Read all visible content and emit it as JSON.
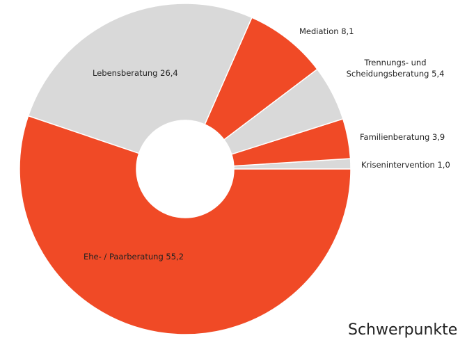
{
  "chart_data": {
    "type": "donut",
    "title": "Schwerpunkte",
    "categories": [
      "Krisenintervention",
      "Familienberatung",
      "Trennungs- und Scheidungsberatung",
      "Mediation",
      "Lebensberatung",
      "Ehe- / Paarberatung"
    ],
    "values": [
      1.0,
      3.9,
      5.4,
      8.1,
      26.4,
      55.2
    ],
    "value_labels": [
      "1,0",
      "3,9",
      "5,4",
      "8,1",
      "26,4",
      "55,2"
    ],
    "colors": [
      "#d9d9d9",
      "#f04a26",
      "#d9d9d9",
      "#f04a26",
      "#d9d9d9",
      "#f04a26"
    ]
  }
}
